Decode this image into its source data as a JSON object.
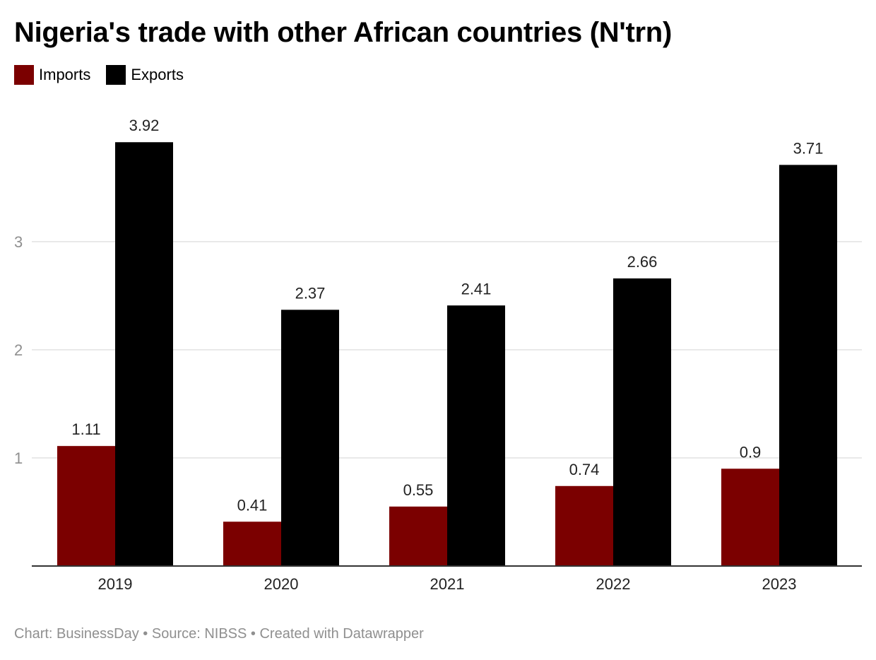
{
  "chart_data": {
    "type": "bar",
    "title": "Nigeria's trade with other African countries (N'trn)",
    "categories": [
      "2019",
      "2020",
      "2021",
      "2022",
      "2023"
    ],
    "series": [
      {
        "name": "Imports",
        "color": "#7b0000",
        "values": [
          1.11,
          0.41,
          0.55,
          0.74,
          0.9
        ]
      },
      {
        "name": "Exports",
        "color": "#000000",
        "values": [
          3.92,
          2.37,
          2.41,
          2.66,
          3.71
        ]
      }
    ],
    "value_labels": {
      "Imports": [
        "1.11",
        "0.41",
        "0.55",
        "0.74",
        "0.9"
      ],
      "Exports": [
        "3.92",
        "2.37",
        "2.41",
        "2.66",
        "3.71"
      ]
    },
    "yticks": [
      1,
      2,
      3
    ],
    "ytick_labels": [
      "1",
      "2",
      "3"
    ],
    "ylim": [
      0,
      4
    ],
    "grid": true,
    "legend_position": "top-left",
    "xlabel": "",
    "ylabel": ""
  },
  "legend": {
    "items": [
      {
        "label": "Imports",
        "color": "#7b0000"
      },
      {
        "label": "Exports",
        "color": "#000000"
      }
    ]
  },
  "footer": {
    "credit": "Chart: BusinessDay • Source: NIBSS • Created with Datawrapper"
  },
  "colors": {
    "gridline": "#e2e2e2",
    "axis": "#333333",
    "tick_text": "#8f8f8f",
    "label_text": "#222222"
  }
}
